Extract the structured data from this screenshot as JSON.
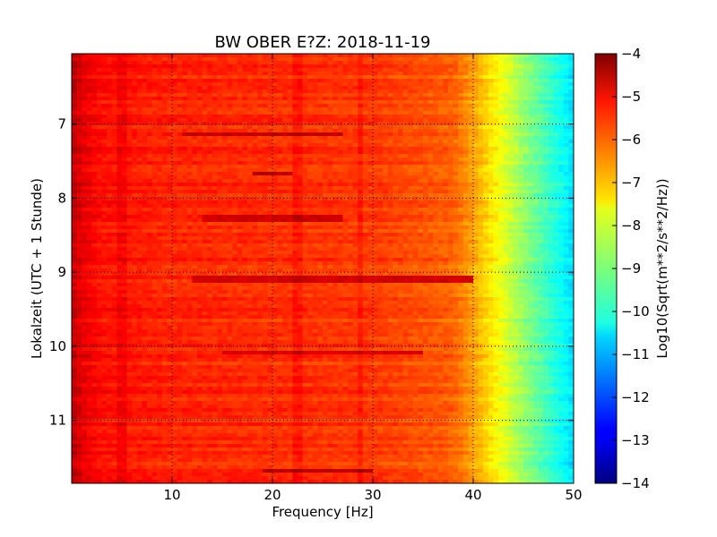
{
  "chart_data": {
    "type": "heatmap",
    "title": "BW OBER E?Z: 2018-11-19",
    "xlabel": "Frequency [Hz]",
    "ylabel": "Lokalzeit (UTC + 1 Stunde)",
    "xlim": [
      0,
      50
    ],
    "ylim": [
      11.85,
      6.05
    ],
    "x_ticks": [
      10,
      20,
      30,
      40,
      50
    ],
    "x_tick_labels": [
      "10",
      "20",
      "30",
      "40",
      "50"
    ],
    "y_ticks": [
      7,
      8,
      9,
      10,
      11
    ],
    "y_tick_labels": [
      "7",
      "8",
      "9",
      "10",
      "11"
    ],
    "grid": true,
    "colorbar": {
      "label": "Log10(Sqrt(m**2/s**2/Hz))",
      "colormap": "jet",
      "min": -14,
      "max": -4,
      "ticks": [
        -4,
        -5,
        -6,
        -7,
        -8,
        -9,
        -10,
        -11,
        -12,
        -13,
        -14
      ],
      "tick_labels": [
        "−4",
        "−5",
        "−6",
        "−7",
        "−8",
        "−9",
        "−10",
        "−11",
        "−12",
        "−13",
        "−14"
      ]
    },
    "spectral_profile": {
      "frequency_hz": [
        0,
        1,
        3,
        10,
        20,
        30,
        38,
        41,
        43,
        45,
        47,
        49,
        50
      ],
      "log10_amplitude": [
        -4.6,
        -5.0,
        -5.4,
        -5.6,
        -5.7,
        -5.8,
        -6.2,
        -7.2,
        -8.0,
        -8.8,
        -9.5,
        -10.2,
        -10.6
      ]
    },
    "strong_lines": [
      {
        "time": 7.15,
        "f_start": 11,
        "f_end": 27,
        "value": -4.7
      },
      {
        "time": 7.68,
        "f_start": 18,
        "f_end": 22,
        "value": -4.6
      },
      {
        "time": 8.27,
        "f_start": 13,
        "f_end": 27,
        "value": -4.8
      },
      {
        "time": 9.09,
        "f_start": 12,
        "f_end": 40,
        "value": -4.8
      },
      {
        "time": 10.08,
        "f_start": 15,
        "f_end": 35,
        "value": -4.9
      },
      {
        "time": 11.67,
        "f_start": 19,
        "f_end": 30,
        "value": -4.6
      }
    ],
    "vertical_lines_hz": [
      5.0,
      22.5,
      28.8
    ]
  }
}
